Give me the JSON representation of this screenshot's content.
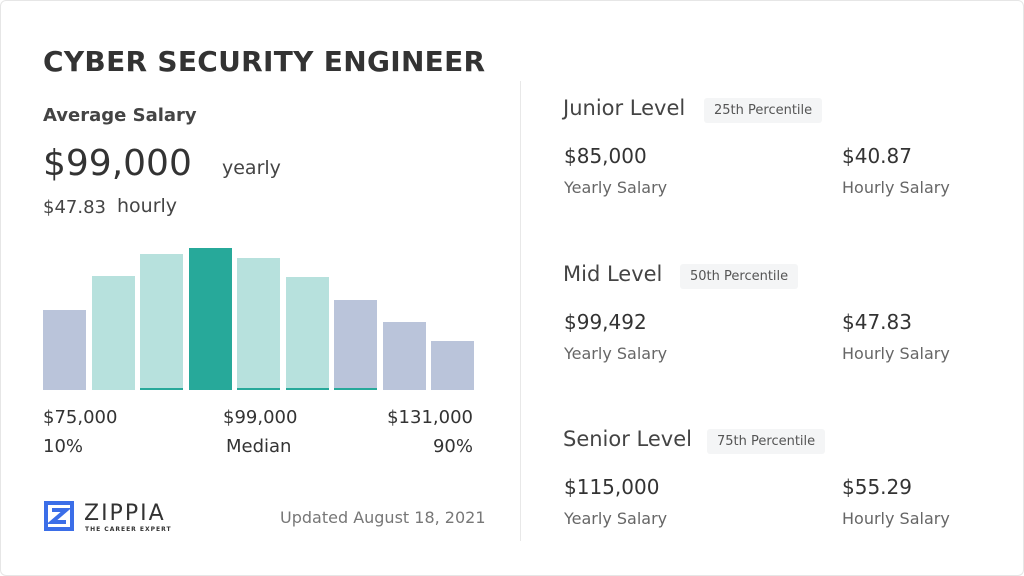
{
  "title": "CYBER SECURITY ENGINEER",
  "average": {
    "label": "Average Salary",
    "yearly_value": "$99,000",
    "yearly_label": "yearly",
    "hourly_value": "$47.83",
    "hourly_label": "hourly"
  },
  "chart_data": {
    "type": "bar",
    "values": [
      80,
      114,
      136,
      142,
      132,
      113,
      90,
      68,
      49
    ],
    "highlight_index": 3,
    "colors": {
      "outer": "#bac4da",
      "inner": "#b7e1dd",
      "median": "#27a99a"
    },
    "labels": {
      "low": "$75,000",
      "low_pct": "10%",
      "mid": "$99,000",
      "mid_pct": "Median",
      "high": "$131,000",
      "high_pct": "90%"
    }
  },
  "logo": {
    "name": "ZIPPIA",
    "tagline": "THE CAREER EXPERT",
    "color": "#3b6ee8"
  },
  "updated": "Updated August 18, 2021",
  "levels": [
    {
      "name": "Junior Level",
      "badge": "25th Percentile",
      "yearly": "$85,000",
      "yearly_label": "Yearly Salary",
      "hourly": "$40.87",
      "hourly_label": "Hourly Salary"
    },
    {
      "name": "Mid Level",
      "badge": "50th Percentile",
      "yearly": "$99,492",
      "yearly_label": "Yearly Salary",
      "hourly": "$47.83",
      "hourly_label": "Hourly Salary"
    },
    {
      "name": "Senior Level",
      "badge": "75th Percentile",
      "yearly": "$115,000",
      "yearly_label": "Yearly Salary",
      "hourly": "$55.29",
      "hourly_label": "Hourly Salary"
    }
  ]
}
